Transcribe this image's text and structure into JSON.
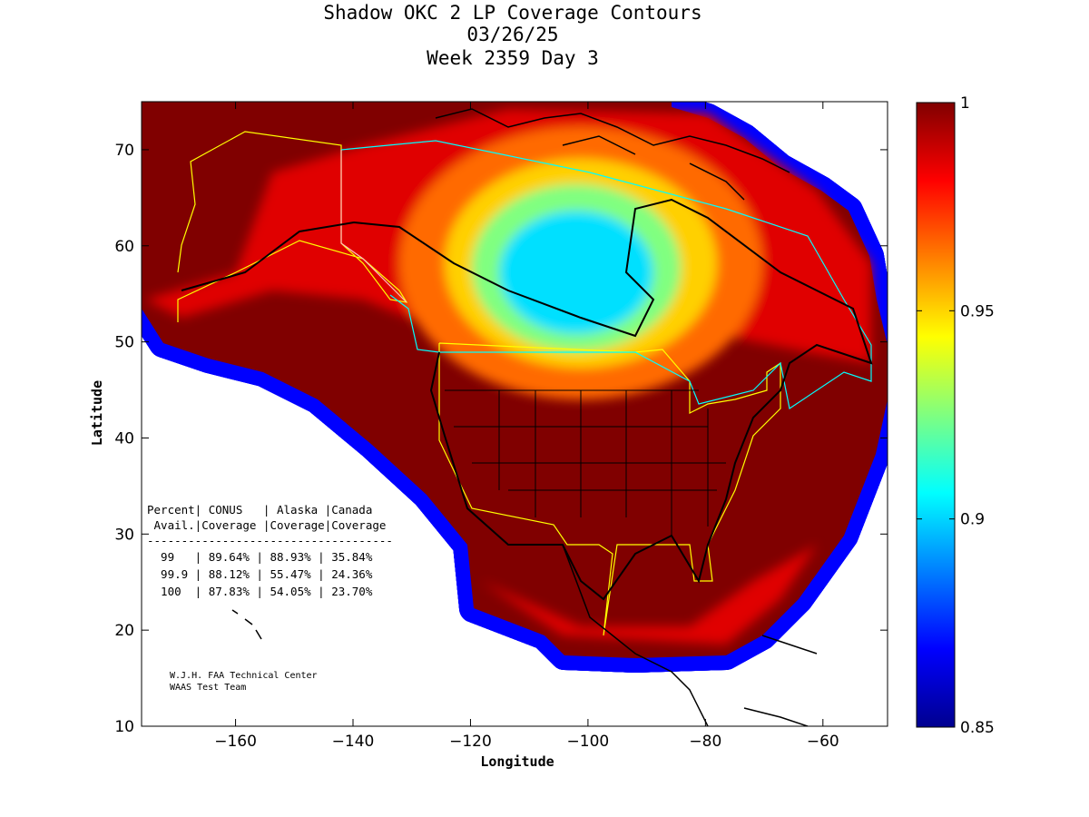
{
  "chart_data": {
    "type": "heatmap",
    "subtype": "filled-contour-map",
    "title": [
      "Shadow OKC 2 LP Coverage Contours",
      "03/26/25",
      "Week 2359 Day 3"
    ],
    "xlabel": "Longitude",
    "ylabel": "Latitude",
    "xlim": [
      -176,
      -49
    ],
    "ylim": [
      10,
      75
    ],
    "xticks": [
      -160,
      -140,
      -120,
      -100,
      -80,
      -60
    ],
    "yticks": [
      10,
      20,
      30,
      40,
      50,
      60,
      70
    ],
    "colorbar": {
      "range": [
        0.85,
        1
      ],
      "ticks": [
        0.85,
        0.9,
        0.95,
        1
      ],
      "tick_labels": [
        "0.85",
        "0.9",
        "0.95",
        "1"
      ],
      "colormap": "jet"
    },
    "features": {
      "low_availability_center": {
        "lon": -100,
        "lat": 56,
        "value": 0.9
      },
      "high_availability_region": "CONUS, Alaska, surrounding oceans",
      "colors": {
        "max": "#800000",
        "min": "#00008f",
        "low_center": "#00e0ff"
      }
    },
    "table": {
      "header1": "Percent| CONUS   | Alaska |Canada",
      "header2": " Avail.|Coverage |Coverage|Coverage",
      "divider": "------------------------------------",
      "columns": [
        "Percent Avail.",
        "CONUS Coverage",
        "Alaska Coverage",
        "Canada Coverage"
      ],
      "rows": [
        {
          "avail": "99",
          "conus": "89.64%",
          "alaska": "88.93%",
          "canada": "35.84%"
        },
        {
          "avail": "99.9",
          "conus": "88.12%",
          "alaska": "55.47%",
          "canada": "24.36%"
        },
        {
          "avail": "100",
          "conus": "87.83%",
          "alaska": "54.05%",
          "canada": "23.70%"
        }
      ],
      "row_text": [
        "  99   | 89.64% | 88.93% | 35.84%",
        "  99.9 | 88.12% | 55.47% | 24.36%",
        "  100  | 87.83% | 54.05% | 23.70%"
      ]
    },
    "credits": [
      "W.J.H. FAA Technical Center",
      "WAAS Test Team"
    ]
  }
}
